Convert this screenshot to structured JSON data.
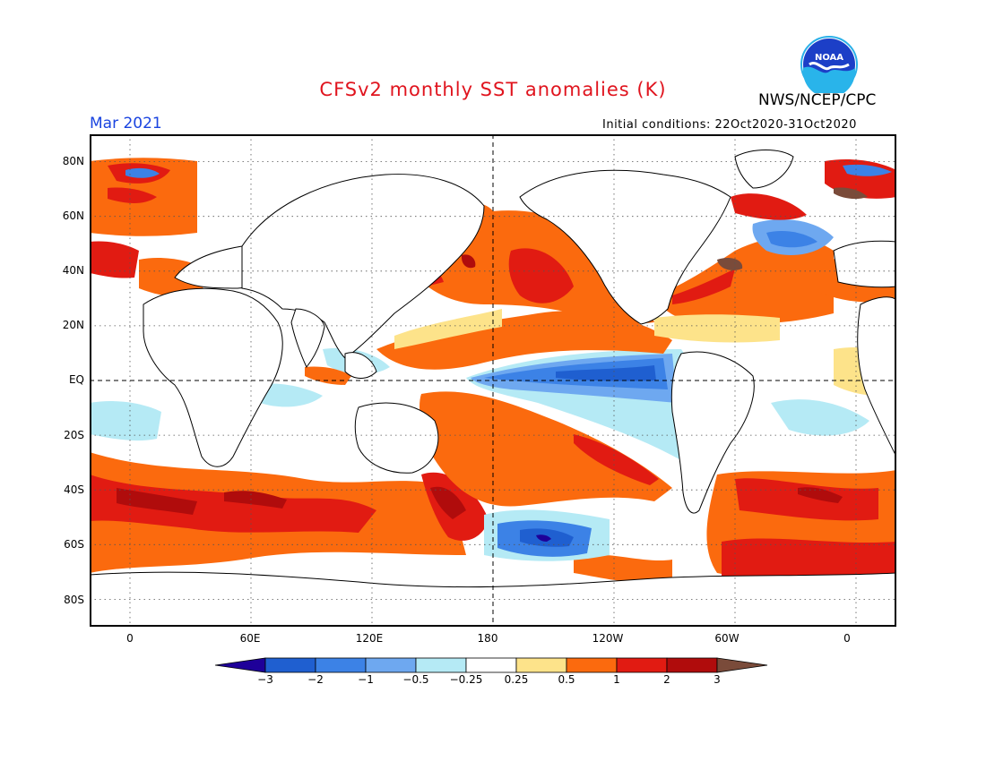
{
  "title": "CFSv2 monthly SST anomalies (K)",
  "agency": "NWS/NCEP/CPC",
  "month": "Mar 2021",
  "initial_conditions": "Initial conditions: 22Oct2020-31Oct2020",
  "logo_text": "NOAA",
  "map": {
    "lat_labels": [
      "80N",
      "60N",
      "40N",
      "20N",
      "EQ",
      "20S",
      "40S",
      "60S",
      "80S"
    ],
    "lon_labels": [
      "0",
      "60E",
      "120E",
      "180",
      "120W",
      "60W",
      "0"
    ],
    "lon_range": [
      -20,
      380
    ],
    "lat_range": [
      -90,
      90
    ],
    "grid": "dotted",
    "reference_lines": [
      "equator",
      "dateline"
    ]
  },
  "colorbar": {
    "labels": [
      "-3",
      "-2",
      "-1",
      "-0.5",
      "-0.25",
      "0.25",
      "0.5",
      "1",
      "2",
      "3"
    ],
    "colors": [
      "#1e0099",
      "#1f5fd0",
      "#3c82e6",
      "#6ea8f0",
      "#b5eaf5",
      "#ffffff",
      "#fde38a",
      "#fb6a0e",
      "#e11b12",
      "#b00c0c",
      "#7a4b3a"
    ]
  },
  "colors": {
    "land": "#ffffff",
    "coast": "#000000",
    "title": "#e0141e",
    "month": "#1a44e0"
  }
}
